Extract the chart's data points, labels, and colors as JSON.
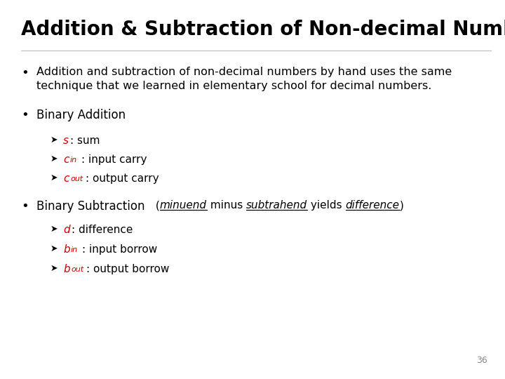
{
  "title": "Addition & Subtraction of Non-decimal Numbers",
  "background_color": "#ffffff",
  "title_color": "#000000",
  "title_fontsize": 20,
  "body_fontsize": 11.5,
  "sub_fontsize": 11,
  "page_number": "36",
  "bullet1_line1": "Addition and subtraction of non-decimal numbers by hand uses the same",
  "bullet1_line2": "technique that we learned in elementary school for decimal numbers.",
  "bullet2_title": "Binary Addition",
  "bullet3_title": "Binary Subtraction",
  "italic_color": "#cc0000",
  "text_color": "#000000",
  "arrow_color": "#000000"
}
